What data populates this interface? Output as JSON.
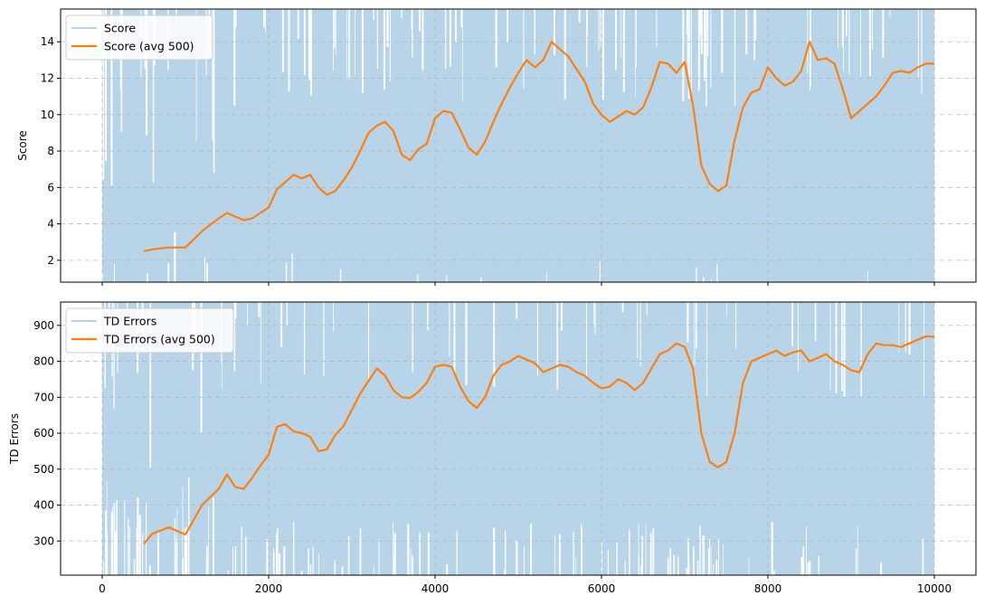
{
  "chart_data": [
    {
      "type": "line",
      "ylabel": "Score",
      "xlim": [
        -500,
        10500
      ],
      "ylim": [
        0.8,
        15.8
      ],
      "xticks": [
        0,
        2000,
        4000,
        6000,
        8000,
        10000
      ],
      "yticks": [
        2,
        4,
        6,
        8,
        10,
        12,
        14
      ],
      "show_xtick_labels": false,
      "grid": true,
      "legend_placement": "upper-left",
      "raw_series": {
        "name": "Score",
        "color": "#b8d4e9",
        "x_range": [
          0,
          10000
        ],
        "typical_range": [
          0.8,
          15.8
        ]
      },
      "series": [
        {
          "name": "Score (avg 500)",
          "color": "#ff7f0e",
          "x": [
            500,
            600,
            800,
            1000,
            1200,
            1400,
            1500,
            1600,
            1700,
            1800,
            1900,
            2000,
            2100,
            2200,
            2300,
            2400,
            2500,
            2600,
            2700,
            2800,
            2900,
            3000,
            3100,
            3200,
            3300,
            3400,
            3500,
            3600,
            3700,
            3800,
            3900,
            4000,
            4100,
            4200,
            4300,
            4400,
            4500,
            4600,
            4700,
            4800,
            4900,
            5000,
            5100,
            5200,
            5300,
            5400,
            5500,
            5600,
            5700,
            5800,
            5900,
            6000,
            6100,
            6200,
            6300,
            6400,
            6500,
            6600,
            6700,
            6800,
            6900,
            7000,
            7100,
            7200,
            7300,
            7400,
            7500,
            7600,
            7700,
            7800,
            7900,
            8000,
            8100,
            8200,
            8300,
            8400,
            8500,
            8600,
            8700,
            8800,
            8900,
            9000,
            9100,
            9200,
            9300,
            9400,
            9500,
            9600,
            9700,
            9800,
            9900,
            10000
          ],
          "values": [
            2.5,
            2.6,
            2.7,
            2.7,
            3.6,
            4.3,
            4.6,
            4.4,
            4.2,
            4.3,
            4.6,
            4.9,
            5.9,
            6.3,
            6.7,
            6.5,
            6.7,
            6.0,
            5.6,
            5.8,
            6.4,
            7.1,
            8.0,
            9.0,
            9.4,
            9.6,
            9.1,
            7.8,
            7.5,
            8.1,
            8.4,
            9.8,
            10.2,
            10.1,
            9.2,
            8.2,
            7.8,
            8.5,
            9.6,
            10.6,
            11.5,
            12.3,
            13.0,
            12.6,
            13.0,
            14.0,
            13.6,
            13.2,
            12.5,
            11.8,
            10.6,
            10.0,
            9.6,
            9.9,
            10.2,
            10.0,
            10.4,
            11.5,
            12.9,
            12.8,
            12.3,
            12.9,
            10.5,
            7.2,
            6.2,
            5.8,
            6.1,
            8.6,
            10.4,
            11.2,
            11.4,
            12.6,
            12.0,
            11.6,
            11.8,
            12.4,
            14.0,
            13.0,
            13.1,
            12.8,
            11.4,
            9.8,
            10.2,
            10.6,
            11.0,
            11.6,
            12.3,
            12.4,
            12.3,
            12.6,
            12.8,
            12.8
          ]
        }
      ]
    },
    {
      "type": "line",
      "ylabel": "TD Errors",
      "xlim": [
        -500,
        10500
      ],
      "ylim": [
        205,
        965
      ],
      "xticks": [
        0,
        2000,
        4000,
        6000,
        8000,
        10000
      ],
      "yticks": [
        300,
        400,
        500,
        600,
        700,
        800,
        900
      ],
      "show_xtick_labels": true,
      "grid": true,
      "legend_placement": "upper-left",
      "raw_series": {
        "name": "TD Errors",
        "color": "#b8d4e9",
        "x_range": [
          0,
          10000
        ],
        "typical_range": [
          205,
          965
        ]
      },
      "series": [
        {
          "name": "TD Errors (avg 500)",
          "color": "#ff7f0e",
          "x": [
            500,
            600,
            800,
            1000,
            1200,
            1400,
            1500,
            1600,
            1700,
            1800,
            1900,
            2000,
            2100,
            2200,
            2300,
            2400,
            2500,
            2600,
            2700,
            2800,
            2900,
            3000,
            3100,
            3200,
            3300,
            3400,
            3500,
            3600,
            3700,
            3800,
            3900,
            4000,
            4100,
            4200,
            4300,
            4400,
            4500,
            4600,
            4700,
            4800,
            4900,
            5000,
            5100,
            5200,
            5300,
            5400,
            5500,
            5600,
            5700,
            5800,
            5900,
            6000,
            6100,
            6200,
            6300,
            6400,
            6500,
            6600,
            6700,
            6800,
            6900,
            7000,
            7100,
            7200,
            7300,
            7400,
            7500,
            7600,
            7700,
            7800,
            7900,
            8000,
            8100,
            8200,
            8300,
            8400,
            8500,
            8600,
            8700,
            8800,
            8900,
            9000,
            9100,
            9200,
            9300,
            9400,
            9500,
            9600,
            9700,
            9800,
            9900,
            10000
          ],
          "values": [
            292,
            320,
            338,
            318,
            400,
            445,
            485,
            450,
            445,
            475,
            510,
            540,
            618,
            625,
            605,
            600,
            590,
            550,
            555,
            595,
            620,
            665,
            710,
            745,
            780,
            760,
            720,
            700,
            698,
            715,
            740,
            785,
            790,
            785,
            730,
            690,
            670,
            700,
            760,
            790,
            800,
            815,
            805,
            795,
            770,
            780,
            790,
            785,
            770,
            760,
            740,
            725,
            730,
            750,
            740,
            720,
            740,
            780,
            820,
            830,
            850,
            840,
            780,
            600,
            520,
            505,
            520,
            600,
            740,
            800,
            810,
            820,
            830,
            815,
            825,
            830,
            800,
            810,
            820,
            800,
            790,
            775,
            770,
            820,
            850,
            845,
            845,
            840,
            850,
            860,
            870,
            868
          ]
        }
      ]
    }
  ]
}
